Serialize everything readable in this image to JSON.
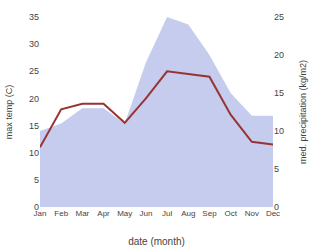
{
  "chart_data": {
    "type": "line",
    "categories": [
      "Jan",
      "Feb",
      "Mar",
      "Apr",
      "May",
      "Jun",
      "Jul",
      "Aug",
      "Sep",
      "Oct",
      "Nov",
      "Dec"
    ],
    "xlabel": "date (month)",
    "ylabel": "max temp (C)",
    "y2label": "med. precipitation (kg/m2)",
    "series": [
      {
        "type": "area",
        "axis": "y2",
        "color": "#c5ccee",
        "values": [
          10,
          11,
          13,
          13,
          11,
          19,
          25,
          24,
          20,
          15,
          12,
          12
        ]
      },
      {
        "type": "line",
        "color": "#993333",
        "values": [
          11,
          18,
          19,
          19,
          15.5,
          20,
          25,
          24.5,
          24,
          17,
          12,
          11.5
        ]
      }
    ],
    "ylim": [
      0,
      35
    ],
    "yticks": [
      0,
      5,
      10,
      15,
      20,
      25,
      30,
      35
    ],
    "y2lim": [
      0,
      25
    ],
    "y2ticks": [
      0,
      5,
      10,
      15,
      20,
      25
    ],
    "grid": false
  }
}
